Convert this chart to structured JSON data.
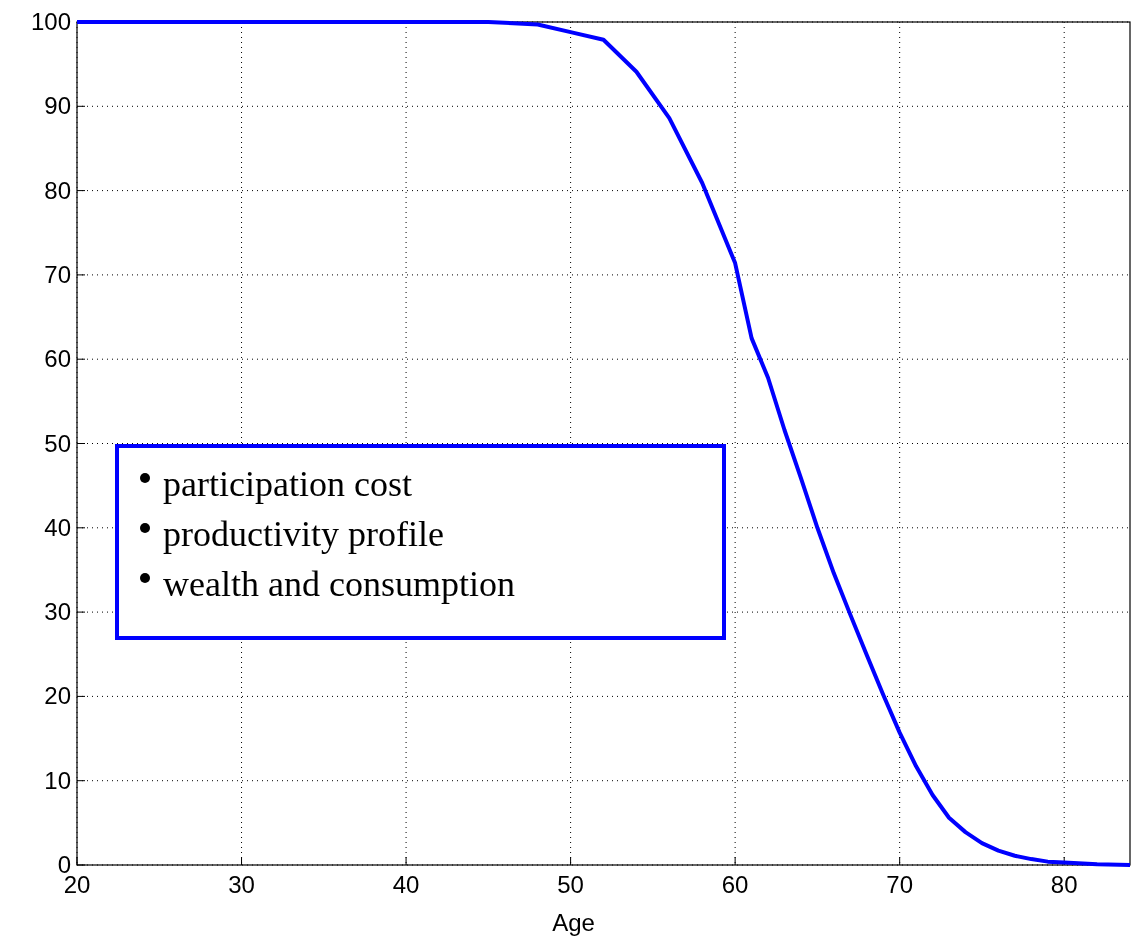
{
  "chart_data": {
    "type": "line",
    "xlabel": "Age",
    "xlim": [
      20,
      84
    ],
    "ylim": [
      0,
      100
    ],
    "xticks": [
      20,
      30,
      40,
      50,
      60,
      70,
      80
    ],
    "yticks": [
      0,
      10,
      20,
      30,
      40,
      50,
      60,
      70,
      80,
      90,
      100
    ],
    "grid": true,
    "line_style": "solid",
    "marker": "none",
    "x": [
      20,
      30,
      40,
      45,
      48,
      50,
      52,
      54,
      56,
      58,
      60,
      61,
      62,
      63,
      64,
      65,
      66,
      67,
      68,
      69,
      70,
      71,
      72,
      73,
      74,
      75,
      76,
      77,
      78,
      79,
      80,
      82,
      84
    ],
    "series": [
      {
        "color": "#0000ff",
        "values": [
          100,
          100,
          100,
          100,
          99.7,
          98.8,
          97.9,
          94.1,
          88.6,
          80.9,
          71.4,
          62.5,
          57.8,
          51.6,
          45.9,
          40.0,
          34.6,
          29.7,
          24.9,
          20.2,
          15.7,
          11.7,
          8.3,
          5.6,
          3.9,
          2.6,
          1.7,
          1.1,
          0.7,
          0.4,
          0.3,
          0.1,
          0
        ]
      }
    ],
    "annotations": [
      "participation cost",
      "productivity profile",
      "wealth and consumption"
    ]
  }
}
